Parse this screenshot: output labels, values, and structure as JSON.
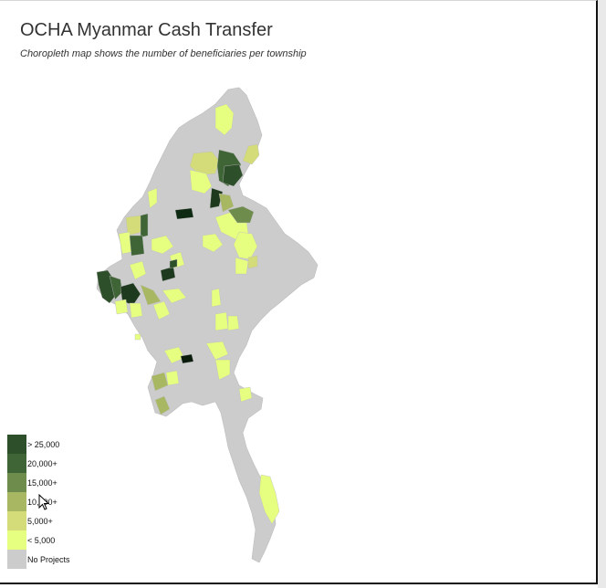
{
  "header": {
    "title": "OCHA Myanmar Cash Transfer",
    "subtitle": "Choropleth map shows the number of beneficiaries per township"
  },
  "colors": {
    "no_projects": "#cccccc",
    "lt5000": "#e6ff80",
    "5000": "#d4dc7a",
    "10000": "#a8b862",
    "15000": "#6e8c4c",
    "20000": "#3f6436",
    "25000": "#2d4f2a"
  },
  "legend": [
    {
      "label": "> 25,000",
      "color": "#2d4f2a"
    },
    {
      "label": "20,000+",
      "color": "#3f6436"
    },
    {
      "label": "15,000+",
      "color": "#6e8c4c"
    },
    {
      "label": "10,000+",
      "color": "#a8b862"
    },
    {
      "label": "5,000+",
      "color": "#d4dc7a"
    },
    {
      "label": "< 5,000",
      "color": "#e6ff80"
    },
    {
      "label": "No Projects",
      "color": "#cccccc"
    }
  ]
}
